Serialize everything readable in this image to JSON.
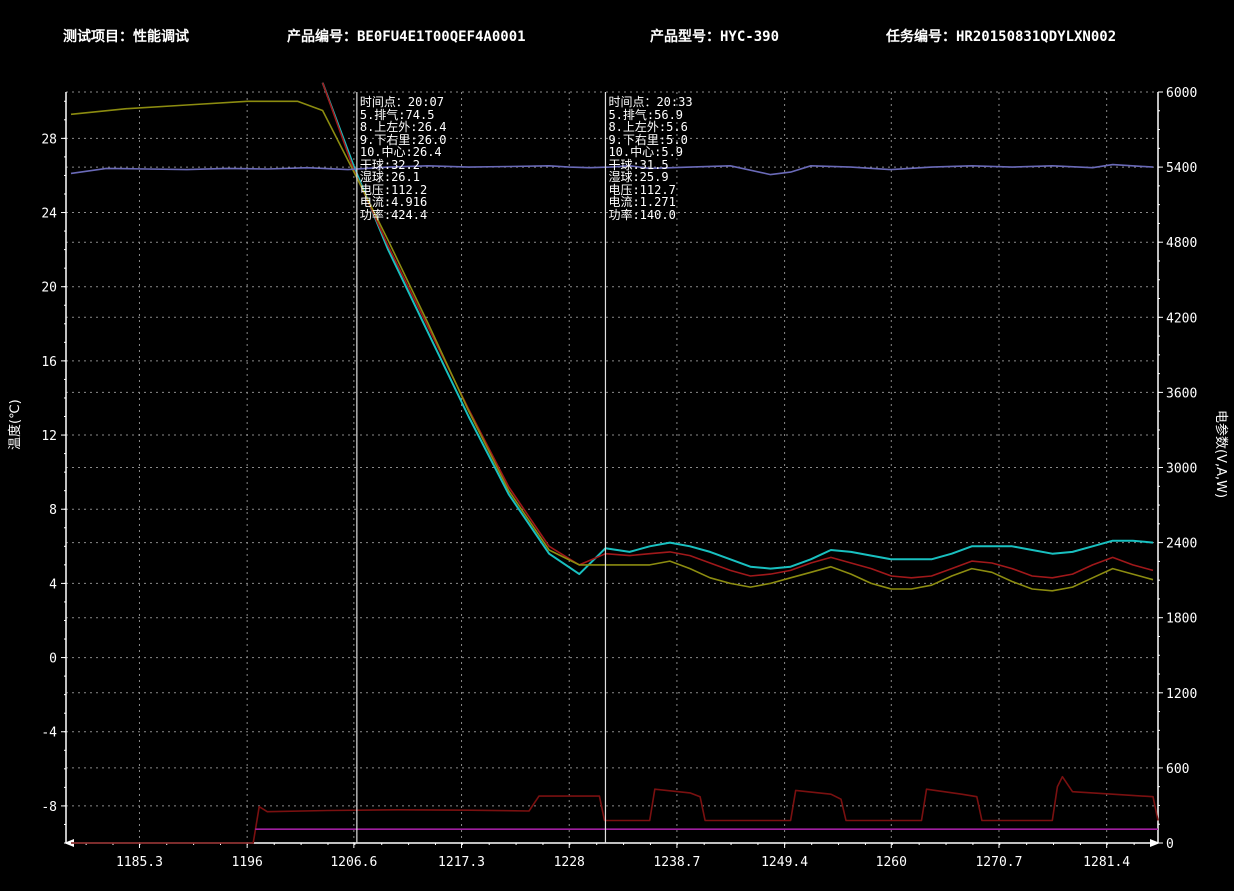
{
  "header": {
    "item_label": "测试项目：性能调试",
    "product_no_label": "产品编号：BE0FU4E1T00QEF4A0001",
    "model_label": "产品型号：HYC-390",
    "task_label": "任务编号：HR20150831QDYLXN002"
  },
  "cursors": [
    {
      "x": 1206.9,
      "lines": [
        "时间点：20:07",
        "5.排气:74.5",
        "8.上左外:26.4",
        "9.下右里:26.0",
        "10.中心:26.4",
        "干球:32.2",
        "湿球:26.1",
        "电压:112.2",
        "电流:4.916",
        "功率:424.4"
      ]
    },
    {
      "x": 1231.6,
      "lines": [
        "时间点：20:33",
        "5.排气:56.9",
        "8.上左外:5.6",
        "9.下右里:5.0",
        "10.中心:5.9",
        "干球:31.5",
        "湿球:25.9",
        "电压:112.7",
        "电流:1.271",
        "功率:140.0"
      ]
    }
  ],
  "colors": {
    "background": "#000000",
    "grid": "#8a8a8a",
    "axis": "#ffffff",
    "teal": "#19c0c0",
    "darkred": "#a0181a",
    "olive": "#8c8c10",
    "lavender": "#6a6ab8",
    "power": "#7a1010",
    "current": "#a020a0"
  },
  "chart_data": {
    "type": "line",
    "xlabel": "",
    "ylabel": "温度(℃)",
    "y2label": "电参数(V,A,W)",
    "xlim": [
      1178,
      1286.5
    ],
    "ylim": [
      -10,
      30.5
    ],
    "y2lim": [
      0,
      6000
    ],
    "x_ticks": [
      "1185.3",
      "1196",
      "1206.6",
      "1217.3",
      "1228",
      "1238.7",
      "1249.4",
      "1260",
      "1270.7",
      "1281.4"
    ],
    "y_ticks": [
      28,
      24,
      20,
      16,
      12,
      8,
      4,
      0,
      -4,
      -8
    ],
    "y2_ticks": [
      6000,
      5400,
      4800,
      4200,
      3600,
      3000,
      2400,
      1800,
      1200,
      600,
      0
    ],
    "grid": true,
    "series": [
      {
        "axis": "left",
        "color": "teal",
        "points": [
          [
            1203.5,
            31
          ],
          [
            1206.6,
            26.5
          ],
          [
            1210,
            22
          ],
          [
            1214,
            17.5
          ],
          [
            1218,
            13
          ],
          [
            1222,
            8.8
          ],
          [
            1226,
            5.6
          ],
          [
            1229,
            4.5
          ],
          [
            1231.6,
            5.9
          ],
          [
            1234,
            5.7
          ],
          [
            1236,
            6
          ],
          [
            1238,
            6.2
          ],
          [
            1240,
            6
          ],
          [
            1242,
            5.7
          ],
          [
            1244,
            5.3
          ],
          [
            1246,
            4.9
          ],
          [
            1248,
            4.8
          ],
          [
            1250,
            4.9
          ],
          [
            1252,
            5.3
          ],
          [
            1254,
            5.8
          ],
          [
            1256,
            5.7
          ],
          [
            1258,
            5.5
          ],
          [
            1260,
            5.3
          ],
          [
            1262,
            5.3
          ],
          [
            1264,
            5.3
          ],
          [
            1266,
            5.6
          ],
          [
            1268,
            6
          ],
          [
            1270,
            6
          ],
          [
            1272,
            6
          ],
          [
            1274,
            5.8
          ],
          [
            1276,
            5.6
          ],
          [
            1278,
            5.7
          ],
          [
            1280,
            6
          ],
          [
            1282,
            6.3
          ],
          [
            1284,
            6.3
          ],
          [
            1286,
            6.2
          ]
        ]
      },
      {
        "axis": "left",
        "color": "darkred",
        "points": [
          [
            1203.5,
            31
          ],
          [
            1206.6,
            26.3
          ],
          [
            1210,
            22.2
          ],
          [
            1214,
            17.8
          ],
          [
            1218,
            13.4
          ],
          [
            1222,
            9.2
          ],
          [
            1226,
            6
          ],
          [
            1229,
            5
          ],
          [
            1231.6,
            5.6
          ],
          [
            1234,
            5.5
          ],
          [
            1236,
            5.6
          ],
          [
            1238,
            5.7
          ],
          [
            1240,
            5.5
          ],
          [
            1242,
            5.1
          ],
          [
            1244,
            4.7
          ],
          [
            1246,
            4.4
          ],
          [
            1248,
            4.5
          ],
          [
            1250,
            4.7
          ],
          [
            1252,
            5.1
          ],
          [
            1254,
            5.4
          ],
          [
            1256,
            5.1
          ],
          [
            1258,
            4.8
          ],
          [
            1260,
            4.4
          ],
          [
            1262,
            4.3
          ],
          [
            1264,
            4.4
          ],
          [
            1266,
            4.8
          ],
          [
            1268,
            5.2
          ],
          [
            1270,
            5.1
          ],
          [
            1272,
            4.8
          ],
          [
            1274,
            4.4
          ],
          [
            1276,
            4.3
          ],
          [
            1278,
            4.5
          ],
          [
            1280,
            5
          ],
          [
            1282,
            5.4
          ],
          [
            1284,
            5
          ],
          [
            1286,
            4.7
          ]
        ]
      },
      {
        "axis": "left",
        "color": "olive",
        "points": [
          [
            1178.5,
            29.3
          ],
          [
            1184,
            29.6
          ],
          [
            1190,
            29.8
          ],
          [
            1196,
            30
          ],
          [
            1201,
            30
          ],
          [
            1203.5,
            29.5
          ],
          [
            1206.6,
            26.2
          ],
          [
            1210,
            22.5
          ],
          [
            1214,
            18
          ],
          [
            1218,
            13.3
          ],
          [
            1222,
            9
          ],
          [
            1226,
            5.8
          ],
          [
            1229,
            5
          ],
          [
            1231.6,
            5
          ],
          [
            1234,
            5
          ],
          [
            1236,
            5
          ],
          [
            1238,
            5.2
          ],
          [
            1240,
            4.8
          ],
          [
            1242,
            4.3
          ],
          [
            1244,
            4
          ],
          [
            1246,
            3.8
          ],
          [
            1248,
            4
          ],
          [
            1250,
            4.3
          ],
          [
            1252,
            4.6
          ],
          [
            1254,
            4.9
          ],
          [
            1256,
            4.5
          ],
          [
            1258,
            4
          ],
          [
            1260,
            3.7
          ],
          [
            1262,
            3.7
          ],
          [
            1264,
            3.9
          ],
          [
            1266,
            4.4
          ],
          [
            1268,
            4.8
          ],
          [
            1270,
            4.6
          ],
          [
            1272,
            4.1
          ],
          [
            1274,
            3.7
          ],
          [
            1276,
            3.6
          ],
          [
            1278,
            3.8
          ],
          [
            1280,
            4.3
          ],
          [
            1282,
            4.8
          ],
          [
            1284,
            4.5
          ],
          [
            1286,
            4.2
          ]
        ]
      },
      {
        "axis": "right",
        "color": "lavender",
        "points": [
          [
            1178.5,
            5350
          ],
          [
            1182,
            5390
          ],
          [
            1186,
            5385
          ],
          [
            1190,
            5380
          ],
          [
            1194,
            5390
          ],
          [
            1198,
            5385
          ],
          [
            1202,
            5395
          ],
          [
            1206,
            5380
          ],
          [
            1210,
            5400
          ],
          [
            1214,
            5410
          ],
          [
            1218,
            5400
          ],
          [
            1222,
            5405
          ],
          [
            1226,
            5410
          ],
          [
            1228,
            5400
          ],
          [
            1230,
            5395
          ],
          [
            1232,
            5400
          ],
          [
            1234,
            5410
          ],
          [
            1236,
            5390
          ],
          [
            1240,
            5400
          ],
          [
            1244,
            5410
          ],
          [
            1248,
            5340
          ],
          [
            1250,
            5360
          ],
          [
            1252,
            5410
          ],
          [
            1256,
            5400
          ],
          [
            1260,
            5380
          ],
          [
            1264,
            5400
          ],
          [
            1268,
            5410
          ],
          [
            1272,
            5400
          ],
          [
            1276,
            5410
          ],
          [
            1280,
            5395
          ],
          [
            1282,
            5420
          ],
          [
            1286,
            5400
          ]
        ]
      },
      {
        "axis": "right",
        "color": "power",
        "points": [
          [
            1178.5,
            0
          ],
          [
            1196.6,
            0
          ],
          [
            1197.2,
            290
          ],
          [
            1198,
            250
          ],
          [
            1204,
            260
          ],
          [
            1211,
            265
          ],
          [
            1218,
            262
          ],
          [
            1224,
            256
          ],
          [
            1225,
            375
          ],
          [
            1231,
            375
          ],
          [
            1231.5,
            180
          ],
          [
            1236,
            180
          ],
          [
            1236.5,
            430
          ],
          [
            1240,
            400
          ],
          [
            1241,
            370
          ],
          [
            1241.5,
            180
          ],
          [
            1250,
            180
          ],
          [
            1250.5,
            420
          ],
          [
            1254,
            390
          ],
          [
            1255,
            350
          ],
          [
            1255.5,
            180
          ],
          [
            1263,
            180
          ],
          [
            1263.5,
            430
          ],
          [
            1267,
            390
          ],
          [
            1268.5,
            370
          ],
          [
            1269,
            180
          ],
          [
            1276,
            180
          ],
          [
            1276.5,
            450
          ],
          [
            1277,
            530
          ],
          [
            1278,
            410
          ],
          [
            1282,
            390
          ],
          [
            1286,
            370
          ],
          [
            1286.5,
            180
          ]
        ]
      },
      {
        "axis": "right",
        "color": "current",
        "points": [
          [
            1196.8,
            110
          ],
          [
            1286.5,
            110
          ]
        ]
      }
    ]
  }
}
